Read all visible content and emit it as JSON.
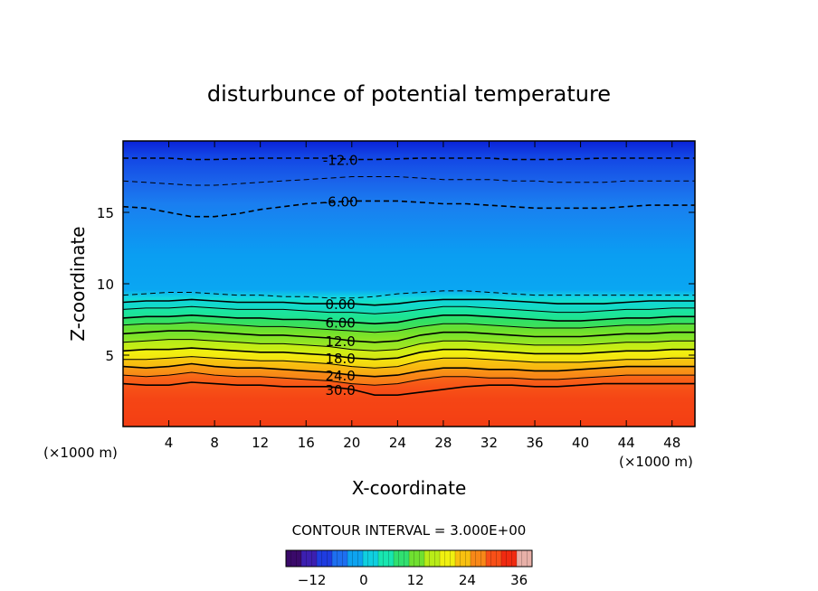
{
  "chart_data": {
    "type": "heatmap",
    "subtype": "filled-contour",
    "title": "disturbunce of potential temperature",
    "xlabel": "X-coordinate",
    "ylabel": "Z-coordinate",
    "x_unit_label_left": "(×1000 m)",
    "x_unit_label_right": "(×1000 m)",
    "xlim": [
      0,
      50
    ],
    "ylim": [
      0,
      20
    ],
    "x_ticks": [
      4,
      8,
      12,
      16,
      20,
      24,
      28,
      32,
      36,
      40,
      44,
      48
    ],
    "y_ticks": [
      5,
      10,
      15
    ],
    "contour_interval_label": "CONTOUR INTERVAL = 3.000E+00",
    "contour_interval": 3.0,
    "color_scale": {
      "min": -18,
      "max": 39,
      "ticks": [
        -12,
        0,
        12,
        24,
        36
      ],
      "colors": [
        "#3a0a6a",
        "#3c1fb0",
        "#1f3ce0",
        "#1e6ff0",
        "#0ea3f0",
        "#10cfe0",
        "#18e6b0",
        "#30e070",
        "#70e030",
        "#b8ec18",
        "#f0f010",
        "#f8c010",
        "#f88818",
        "#f85018",
        "#f02a10",
        "#e8b0a8"
      ]
    },
    "contours": [
      {
        "level": -12.0,
        "label": "-12.0",
        "style": "dashed",
        "z": [
          18.8,
          18.8,
          18.8,
          18.7,
          18.7,
          18.75,
          18.8,
          18.8,
          18.8,
          18.8,
          18.7,
          18.7,
          18.75,
          18.8,
          18.8,
          18.8,
          18.8,
          18.7,
          18.7,
          18.7,
          18.75,
          18.8,
          18.8,
          18.8,
          18.8,
          18.8
        ]
      },
      {
        "level": -9.0,
        "label": "",
        "style": "dashed",
        "z": [
          17.2,
          17.1,
          17.0,
          16.9,
          16.9,
          17.0,
          17.1,
          17.2,
          17.3,
          17.4,
          17.5,
          17.5,
          17.5,
          17.4,
          17.3,
          17.3,
          17.3,
          17.2,
          17.2,
          17.1,
          17.1,
          17.1,
          17.2,
          17.2,
          17.2,
          17.2
        ]
      },
      {
        "level": -6.0,
        "label": "-6.00",
        "style": "dashed",
        "z": [
          15.4,
          15.3,
          15.0,
          14.7,
          14.7,
          14.9,
          15.2,
          15.4,
          15.6,
          15.7,
          15.8,
          15.8,
          15.8,
          15.7,
          15.6,
          15.6,
          15.5,
          15.4,
          15.3,
          15.3,
          15.3,
          15.3,
          15.4,
          15.5,
          15.5,
          15.5
        ]
      },
      {
        "level": -3.0,
        "label": "",
        "style": "dashed",
        "z": [
          9.2,
          9.3,
          9.4,
          9.4,
          9.3,
          9.2,
          9.2,
          9.1,
          9.1,
          9.0,
          9.0,
          9.1,
          9.3,
          9.4,
          9.5,
          9.5,
          9.4,
          9.3,
          9.2,
          9.2,
          9.2,
          9.2,
          9.2,
          9.2,
          9.2,
          9.2
        ]
      },
      {
        "level": 0.0,
        "label": "0.00",
        "style": "solid",
        "z": [
          8.7,
          8.8,
          8.8,
          8.9,
          8.8,
          8.7,
          8.7,
          8.7,
          8.6,
          8.6,
          8.6,
          8.5,
          8.6,
          8.8,
          8.9,
          8.9,
          8.9,
          8.8,
          8.7,
          8.6,
          8.6,
          8.6,
          8.7,
          8.8,
          8.8,
          8.8
        ]
      },
      {
        "level": 3.0,
        "label": "",
        "style": "solid",
        "z": [
          8.2,
          8.3,
          8.3,
          8.4,
          8.3,
          8.2,
          8.2,
          8.2,
          8.1,
          8.0,
          8.0,
          7.9,
          8.0,
          8.2,
          8.4,
          8.4,
          8.3,
          8.2,
          8.1,
          8.0,
          8.0,
          8.1,
          8.2,
          8.2,
          8.3,
          8.3
        ]
      },
      {
        "level": 6.0,
        "label": "6.00",
        "style": "solid",
        "z": [
          7.6,
          7.7,
          7.7,
          7.8,
          7.7,
          7.6,
          7.6,
          7.5,
          7.5,
          7.4,
          7.3,
          7.2,
          7.3,
          7.6,
          7.8,
          7.8,
          7.7,
          7.6,
          7.5,
          7.4,
          7.4,
          7.5,
          7.6,
          7.6,
          7.7,
          7.7
        ]
      },
      {
        "level": 9.0,
        "label": "",
        "style": "solid",
        "z": [
          7.1,
          7.2,
          7.2,
          7.3,
          7.2,
          7.1,
          7.0,
          7.0,
          6.9,
          6.8,
          6.7,
          6.6,
          6.7,
          7.0,
          7.2,
          7.2,
          7.1,
          7.0,
          6.9,
          6.9,
          6.9,
          7.0,
          7.1,
          7.1,
          7.2,
          7.2
        ]
      },
      {
        "level": 12.0,
        "label": "12.0",
        "style": "solid",
        "z": [
          6.5,
          6.6,
          6.7,
          6.7,
          6.6,
          6.5,
          6.4,
          6.4,
          6.3,
          6.2,
          6.0,
          5.9,
          6.0,
          6.4,
          6.6,
          6.6,
          6.5,
          6.4,
          6.3,
          6.3,
          6.3,
          6.4,
          6.5,
          6.5,
          6.6,
          6.6
        ]
      },
      {
        "level": 15.0,
        "label": "",
        "style": "solid",
        "z": [
          5.9,
          6.0,
          6.1,
          6.1,
          6.0,
          5.9,
          5.8,
          5.8,
          5.7,
          5.6,
          5.4,
          5.3,
          5.4,
          5.8,
          6.0,
          6.0,
          5.9,
          5.8,
          5.7,
          5.7,
          5.7,
          5.8,
          5.9,
          5.9,
          6.0,
          6.0
        ]
      },
      {
        "level": 18.0,
        "label": "18.0",
        "style": "solid",
        "z": [
          5.3,
          5.4,
          5.4,
          5.5,
          5.4,
          5.3,
          5.2,
          5.2,
          5.1,
          5.0,
          4.8,
          4.7,
          4.8,
          5.2,
          5.4,
          5.4,
          5.3,
          5.2,
          5.1,
          5.1,
          5.1,
          5.2,
          5.3,
          5.3,
          5.4,
          5.4
        ]
      },
      {
        "level": 21.0,
        "label": "",
        "style": "solid",
        "z": [
          4.7,
          4.7,
          4.8,
          4.9,
          4.8,
          4.7,
          4.6,
          4.6,
          4.5,
          4.4,
          4.2,
          4.1,
          4.2,
          4.6,
          4.8,
          4.8,
          4.7,
          4.6,
          4.5,
          4.5,
          4.5,
          4.6,
          4.7,
          4.7,
          4.8,
          4.8
        ]
      },
      {
        "level": 24.0,
        "label": "24.0",
        "style": "solid",
        "z": [
          4.2,
          4.1,
          4.2,
          4.4,
          4.2,
          4.1,
          4.1,
          4.0,
          3.9,
          3.8,
          3.6,
          3.5,
          3.6,
          3.9,
          4.1,
          4.1,
          4.0,
          4.0,
          3.9,
          3.9,
          4.0,
          4.1,
          4.2,
          4.2,
          4.2,
          4.2
        ]
      },
      {
        "level": 27.0,
        "label": "",
        "style": "solid",
        "z": [
          3.6,
          3.5,
          3.6,
          3.8,
          3.6,
          3.5,
          3.5,
          3.4,
          3.3,
          3.2,
          3.0,
          2.9,
          3.0,
          3.3,
          3.5,
          3.5,
          3.4,
          3.4,
          3.3,
          3.3,
          3.4,
          3.5,
          3.6,
          3.6,
          3.6,
          3.6
        ]
      },
      {
        "level": 30.0,
        "label": "30.0",
        "style": "solid",
        "z": [
          3.0,
          2.9,
          2.9,
          3.1,
          3.0,
          2.9,
          2.9,
          2.8,
          2.8,
          2.8,
          2.6,
          2.2,
          2.2,
          2.4,
          2.6,
          2.8,
          2.9,
          2.9,
          2.8,
          2.8,
          2.9,
          3.0,
          3.0,
          3.0,
          3.0,
          3.0
        ]
      }
    ]
  }
}
